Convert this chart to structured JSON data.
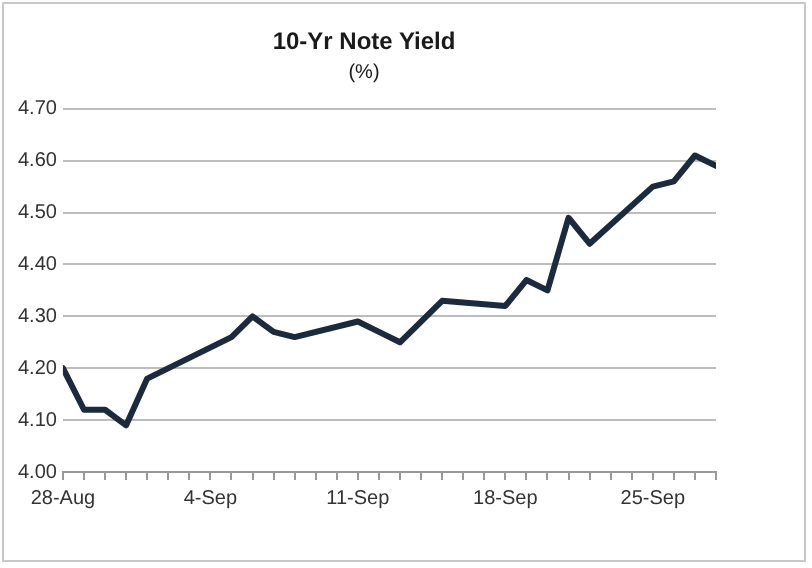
{
  "chart_data": {
    "type": "line",
    "title": "10-Yr Note Yield",
    "subtitle": "(%)",
    "x": [
      "--08-28",
      "--08-29",
      "--08-30",
      "--08-31",
      "--09-01",
      "--09-05",
      "--09-06",
      "--09-07",
      "--09-08",
      "--09-11",
      "--09-12",
      "--09-13",
      "--09-14",
      "--09-15",
      "--09-18",
      "--09-19",
      "--09-20",
      "--09-21",
      "--09-22",
      "--09-25",
      "--09-26",
      "--09-27",
      "--09-28"
    ],
    "series": [
      {
        "color": "#1b2a3c",
        "values": [
          4.2,
          4.12,
          4.12,
          4.09,
          4.18,
          4.26,
          4.3,
          4.27,
          4.26,
          4.29,
          4.27,
          4.25,
          4.29,
          4.33,
          4.32,
          4.37,
          4.35,
          4.49,
          4.44,
          4.55,
          4.56,
          4.61,
          4.59
        ]
      }
    ],
    "xlim": [
      "--08-28",
      "--09-28"
    ],
    "xticks": [
      {
        "value": "--08-28",
        "label": "28-Aug"
      },
      {
        "value": "--08-29",
        "label": null
      },
      {
        "value": "--08-30",
        "label": null
      },
      {
        "value": "--08-31",
        "label": null
      },
      {
        "value": "--09-01",
        "label": null
      },
      {
        "value": "--09-02",
        "label": null
      },
      {
        "value": "--09-03",
        "label": null
      },
      {
        "value": "--09-04",
        "label": "4-Sep"
      },
      {
        "value": "--09-05",
        "label": null
      },
      {
        "value": "--09-06",
        "label": null
      },
      {
        "value": "--09-07",
        "label": null
      },
      {
        "value": "--09-08",
        "label": null
      },
      {
        "value": "--09-09",
        "label": null
      },
      {
        "value": "--09-10",
        "label": null
      },
      {
        "value": "--09-11",
        "label": "11-Sep"
      },
      {
        "value": "--09-12",
        "label": null
      },
      {
        "value": "--09-13",
        "label": null
      },
      {
        "value": "--09-14",
        "label": null
      },
      {
        "value": "--09-15",
        "label": null
      },
      {
        "value": "--09-16",
        "label": null
      },
      {
        "value": "--09-17",
        "label": null
      },
      {
        "value": "--09-18",
        "label": "18-Sep"
      },
      {
        "value": "--09-19",
        "label": null
      },
      {
        "value": "--09-20",
        "label": null
      },
      {
        "value": "--09-21",
        "label": null
      },
      {
        "value": "--09-22",
        "label": null
      },
      {
        "value": "--09-23",
        "label": null
      },
      {
        "value": "--09-24",
        "label": null
      },
      {
        "value": "--09-25",
        "label": "25-Sep"
      },
      {
        "value": "--09-26",
        "label": null
      },
      {
        "value": "--09-27",
        "label": null
      },
      {
        "value": "--09-28",
        "label": null
      }
    ],
    "ylim": [
      4.0,
      4.7
    ],
    "yticks": [
      {
        "value": 4.0,
        "label": "4.00"
      },
      {
        "value": 4.1,
        "label": "4.10"
      },
      {
        "value": 4.2,
        "label": "4.20"
      },
      {
        "value": 4.3,
        "label": "4.30"
      },
      {
        "value": 4.4,
        "label": "4.40"
      },
      {
        "value": 4.5,
        "label": "4.50"
      },
      {
        "value": 4.6,
        "label": "4.60"
      },
      {
        "value": 4.7,
        "label": "4.70"
      }
    ],
    "grid": "y",
    "legend": false,
    "marker": "none",
    "line_style": "solid"
  }
}
